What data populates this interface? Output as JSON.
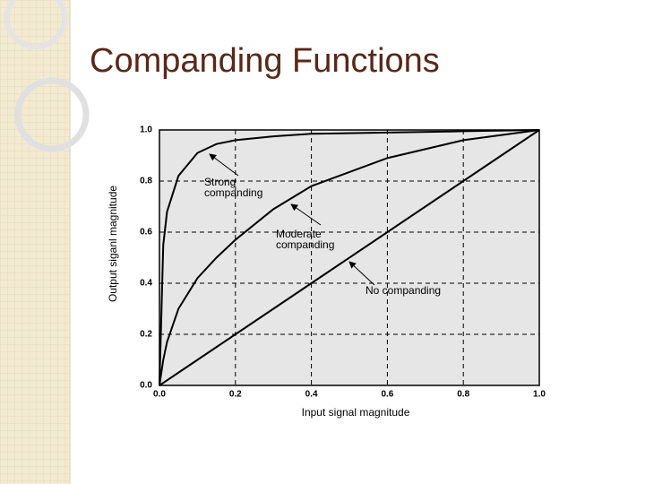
{
  "chart_data": {
    "type": "line",
    "title": "Companding Functions",
    "xlabel": "Input signal magnitude",
    "ylabel": "Output siganl magnitude",
    "xlim": [
      0,
      1
    ],
    "ylim": [
      0,
      1
    ],
    "xticks": [
      {
        "value": 0,
        "label": "0.0"
      },
      0.2,
      0.4,
      0.6,
      0.8,
      {
        "value": 1,
        "label": "1.0"
      }
    ],
    "yticks": [
      {
        "value": 0,
        "label": "0.0"
      },
      0.2,
      0.4,
      0.6,
      0.8,
      {
        "value": 1,
        "label": "1.0"
      }
    ],
    "grid": true,
    "x": [
      0,
      0.01,
      0.02,
      0.05,
      0.1,
      0.15,
      0.2,
      0.3,
      0.4,
      0.6,
      0.8,
      1
    ],
    "series": [
      {
        "label": [
          "Strong",
          "companding"
        ],
        "color": "#000000",
        "values": [
          0,
          0.55,
          0.68,
          0.82,
          0.91,
          0.945,
          0.96,
          0.975,
          0.985,
          0.99,
          0.995,
          1
        ]
      },
      {
        "label": [
          "Moderate",
          "companding"
        ],
        "color": "#000000",
        "values": [
          0,
          0.1,
          0.17,
          0.3,
          0.42,
          0.5,
          0.57,
          0.69,
          0.78,
          0.89,
          0.96,
          1
        ]
      },
      {
        "label": [
          "No companding"
        ],
        "color": "#000000",
        "values": [
          0,
          0.01,
          0.02,
          0.05,
          0.1,
          0.15,
          0.2,
          0.3,
          0.4,
          0.6,
          0.8,
          1
        ]
      }
    ]
  }
}
